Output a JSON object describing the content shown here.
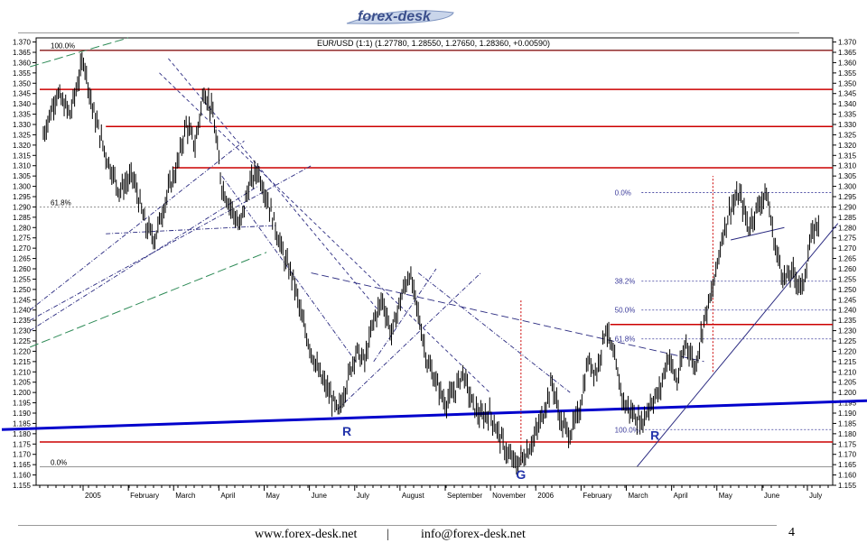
{
  "header": {
    "logo_text": "forex-desk"
  },
  "footer": {
    "url": "www.forex-desk.net",
    "separator": "|",
    "email": "info@forex-desk.net",
    "page_number": "4"
  },
  "chart_data": {
    "type": "bar",
    "title": "EUR/USD (1:1) (1.27780, 1.28550, 1.27650, 1.28360, +0.00590)",
    "xlabel": "",
    "ylabel": "",
    "ylim": [
      1.155,
      1.372
    ],
    "grid": false,
    "months": [
      "2005",
      "February",
      "March",
      "April",
      "May",
      "June",
      "July",
      "August",
      "September",
      "November",
      "2006",
      "February",
      "March",
      "April",
      "May",
      "June",
      "July"
    ],
    "y_ticks": [
      1.155,
      1.16,
      1.165,
      1.17,
      1.175,
      1.18,
      1.185,
      1.19,
      1.195,
      1.2,
      1.205,
      1.21,
      1.215,
      1.22,
      1.225,
      1.23,
      1.235,
      1.24,
      1.245,
      1.25,
      1.255,
      1.26,
      1.265,
      1.27,
      1.275,
      1.28,
      1.285,
      1.29,
      1.295,
      1.3,
      1.305,
      1.31,
      1.315,
      1.32,
      1.325,
      1.33,
      1.335,
      1.34,
      1.345,
      1.35,
      1.355,
      1.36,
      1.365,
      1.37
    ],
    "price_path": [
      [
        0,
        1.325
      ],
      [
        3,
        1.345
      ],
      [
        6,
        1.335
      ],
      [
        9,
        1.362
      ],
      [
        11,
        1.338
      ],
      [
        14,
        1.315
      ],
      [
        17,
        1.298
      ],
      [
        20,
        1.305
      ],
      [
        23,
        1.28
      ],
      [
        25,
        1.275
      ],
      [
        28,
        1.298
      ],
      [
        30,
        1.31
      ],
      [
        32,
        1.33
      ],
      [
        34,
        1.32
      ],
      [
        36,
        1.347
      ],
      [
        38,
        1.335
      ],
      [
        40,
        1.3
      ],
      [
        42,
        1.29
      ],
      [
        44,
        1.28
      ],
      [
        46,
        1.3
      ],
      [
        48,
        1.308
      ],
      [
        50,
        1.295
      ],
      [
        52,
        1.28
      ],
      [
        54,
        1.265
      ],
      [
        56,
        1.255
      ],
      [
        58,
        1.235
      ],
      [
        60,
        1.22
      ],
      [
        62,
        1.208
      ],
      [
        64,
        1.2
      ],
      [
        66,
        1.19
      ],
      [
        68,
        1.205
      ],
      [
        70,
        1.22
      ],
      [
        72,
        1.215
      ],
      [
        74,
        1.235
      ],
      [
        76,
        1.245
      ],
      [
        78,
        1.228
      ],
      [
        80,
        1.245
      ],
      [
        82,
        1.258
      ],
      [
        84,
        1.238
      ],
      [
        86,
        1.215
      ],
      [
        88,
        1.205
      ],
      [
        90,
        1.195
      ],
      [
        92,
        1.2
      ],
      [
        94,
        1.21
      ],
      [
        96,
        1.195
      ],
      [
        98,
        1.188
      ],
      [
        100,
        1.19
      ],
      [
        102,
        1.18
      ],
      [
        104,
        1.17
      ],
      [
        106,
        1.165
      ],
      [
        108,
        1.17
      ],
      [
        110,
        1.178
      ],
      [
        112,
        1.19
      ],
      [
        114,
        1.205
      ],
      [
        116,
        1.185
      ],
      [
        118,
        1.18
      ],
      [
        120,
        1.19
      ],
      [
        122,
        1.215
      ],
      [
        124,
        1.21
      ],
      [
        126,
        1.232
      ],
      [
        128,
        1.215
      ],
      [
        130,
        1.195
      ],
      [
        132,
        1.19
      ],
      [
        134,
        1.185
      ],
      [
        136,
        1.195
      ],
      [
        138,
        1.2
      ],
      [
        140,
        1.218
      ],
      [
        142,
        1.205
      ],
      [
        144,
        1.225
      ],
      [
        146,
        1.212
      ],
      [
        148,
        1.235
      ],
      [
        150,
        1.25
      ],
      [
        152,
        1.275
      ],
      [
        154,
        1.29
      ],
      [
        156,
        1.296
      ],
      [
        158,
        1.28
      ],
      [
        160,
        1.29
      ],
      [
        162,
        1.297
      ],
      [
        164,
        1.27
      ],
      [
        166,
        1.255
      ],
      [
        168,
        1.258
      ],
      [
        170,
        1.25
      ],
      [
        172,
        1.275
      ],
      [
        174,
        1.285
      ]
    ],
    "horizontal_levels": [
      1.366,
      1.347,
      1.329,
      1.309,
      1.233,
      1.176
    ],
    "fib_left": {
      "levels": [
        {
          "label": "100.0%",
          "value": 1.366
        },
        {
          "label": "61.8%",
          "value": 1.29
        },
        {
          "label": "0.0%",
          "value": 1.164
        }
      ]
    },
    "fib_right": {
      "levels": [
        {
          "label": "0.0%",
          "value": 1.297
        },
        {
          "label": "38.2%",
          "value": 1.254
        },
        {
          "label": "50.0%",
          "value": 1.24
        },
        {
          "label": "61.8%",
          "value": 1.226
        },
        {
          "label": "100.0%",
          "value": 1.182
        }
      ]
    },
    "annotations": [
      {
        "text": "R",
        "x": 68,
        "y": 1.179
      },
      {
        "text": "G",
        "x": 107,
        "y": 1.158
      },
      {
        "text": "R",
        "x": 137,
        "y": 1.177
      }
    ],
    "colors": {
      "price": "#000000",
      "support": "#0000cc",
      "resistance": "#cc0000",
      "trend": "#2a2a80",
      "channel_green": "#2e8b57",
      "fib": "#3a3a9a"
    }
  }
}
